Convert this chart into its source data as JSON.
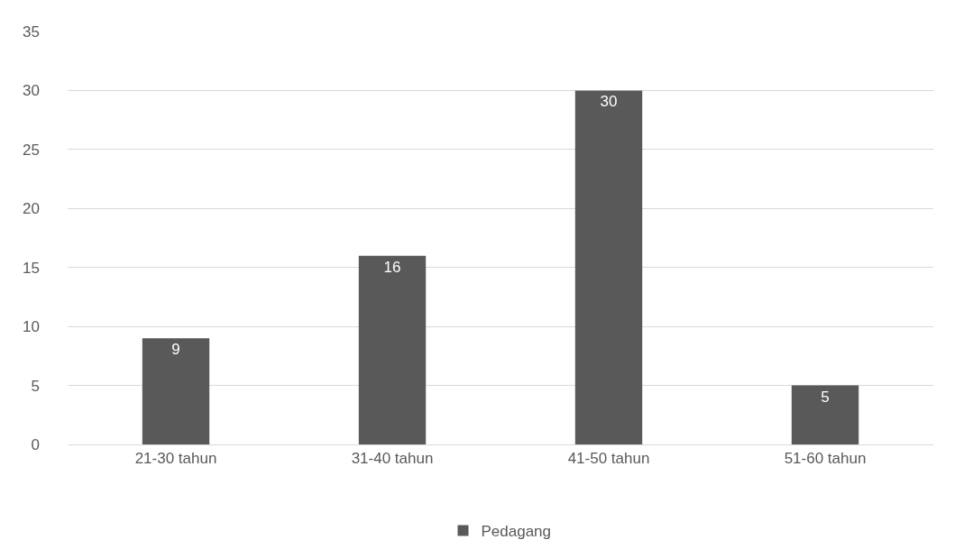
{
  "chart_data": {
    "type": "bar",
    "categories": [
      "21-30 tahun",
      "31-40 tahun",
      "41-50 tahun",
      "51-60 tahun"
    ],
    "series": [
      {
        "name": "Pedagang",
        "color": "#595959",
        "values": [
          9,
          16,
          30,
          5
        ]
      }
    ],
    "ylim": [
      0,
      35
    ],
    "yticks": [
      0,
      5,
      10,
      15,
      20,
      25,
      30,
      35
    ],
    "grid": "y",
    "legend": "bottom",
    "data_labels": true
  }
}
